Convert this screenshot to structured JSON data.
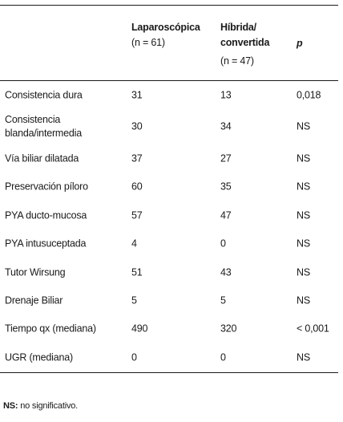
{
  "header": {
    "col_laparoscopica_title": "Laparoscópica",
    "col_laparoscopica_n": "(n = 61)",
    "col_hibrida_title_line1": "Híbrida/",
    "col_hibrida_title_line2": "convertida",
    "col_hibrida_n": "(n = 47)",
    "col_p": "p"
  },
  "rows": [
    {
      "label": "Consistencia dura",
      "lap": "31",
      "hib": "13",
      "p": "0,018"
    },
    {
      "label": "Consistencia blanda/intermedia",
      "lap": "30",
      "hib": "34",
      "p": "NS"
    },
    {
      "label": "Vía biliar dilatada",
      "lap": "37",
      "hib": "27",
      "p": "NS"
    },
    {
      "label": "Preservación píloro",
      "lap": "60",
      "hib": "35",
      "p": "NS"
    },
    {
      "label": "PYA ducto-mucosa",
      "lap": "57",
      "hib": "47",
      "p": "NS"
    },
    {
      "label": "PYA intusuceptada",
      "lap": "4",
      "hib": "0",
      "p": "NS"
    },
    {
      "label": "Tutor Wirsung",
      "lap": "51",
      "hib": "43",
      "p": "NS"
    },
    {
      "label": "Drenaje Biliar",
      "lap": "5",
      "hib": "5",
      "p": "NS"
    },
    {
      "label": "Tiempo qx (mediana)",
      "lap": "490",
      "hib": "320",
      "p": "< 0,001"
    },
    {
      "label": "UGR (mediana)",
      "lap": "0",
      "hib": "0",
      "p": "NS"
    }
  ],
  "footnote": {
    "abbr": "NS:",
    "text": " no significativo."
  }
}
